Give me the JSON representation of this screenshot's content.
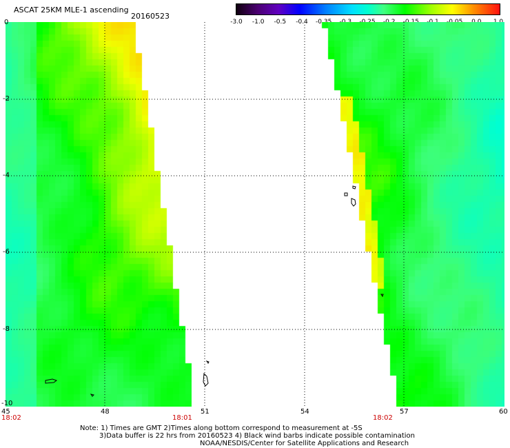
{
  "title": "ASCAT 25KM MLE-1 ascending",
  "date": "20160523",
  "colorbar": {
    "ticks": [
      "-3.0",
      "-1.0",
      "-0.5",
      "-0.4",
      "-0.35",
      "-0.3",
      "-0.25",
      "-0.2",
      "-0.15",
      "-0.1",
      "-0.05",
      "0.0",
      "1.0"
    ],
    "colors": [
      "#200020",
      "#5a00a0",
      "#2020ff",
      "#0080ff",
      "#00c8ff",
      "#00ffe0",
      "#40ff80",
      "#00ff00",
      "#80ff00",
      "#d0ff00",
      "#ffd000",
      "#ff8000",
      "#ff2000"
    ]
  },
  "axes": {
    "y_labels": [
      "0",
      "-2",
      "-4",
      "-6",
      "-8",
      "-10"
    ],
    "x_labels": [
      "45",
      "48",
      "51",
      "54",
      "57",
      "60"
    ]
  },
  "times": [
    "18:02",
    "18:01",
    "18:02"
  ],
  "notes": [
    "Note: 1) Times are GMT 2)Times along bottom correspond to measurement at -5S",
    "3)Data buffer is 22 hrs from 20160523 4) Black wind barbs indicate possible contamination",
    "NOAA/NESDIS/Center for Satellite Applications and Research"
  ]
}
